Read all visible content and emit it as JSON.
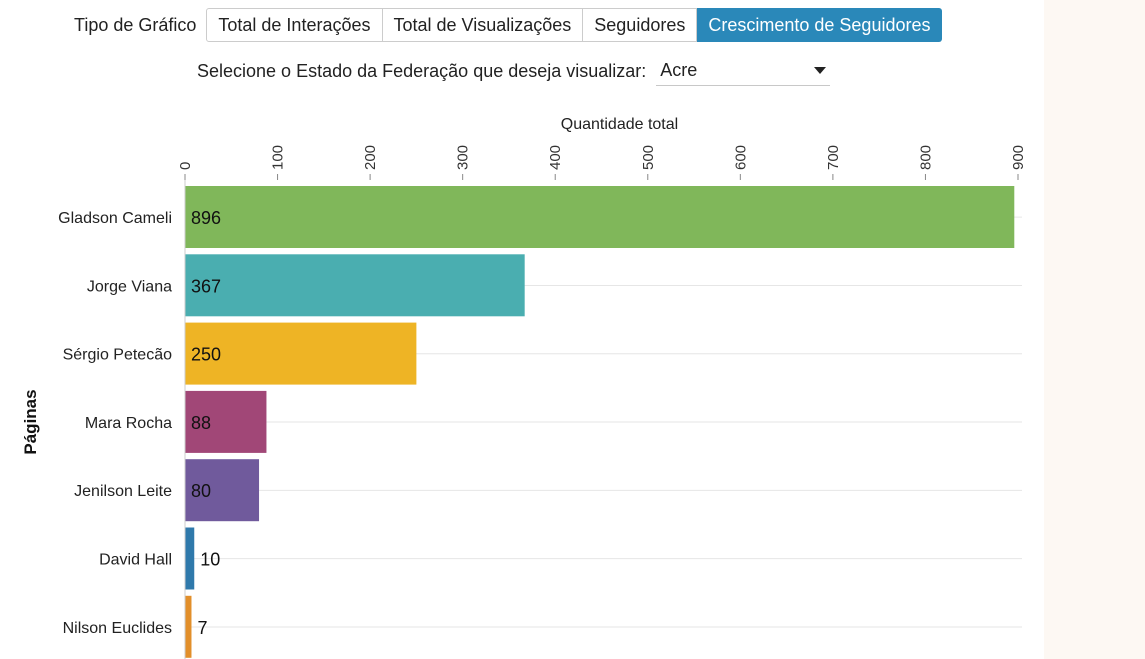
{
  "controls": {
    "label": "Tipo de Gráfico",
    "buttons": [
      {
        "label": "Total de Interações",
        "active": false
      },
      {
        "label": "Total de Visualizações",
        "active": false
      },
      {
        "label": "Seguidores",
        "active": false
      },
      {
        "label": "Crescimento de Seguidores",
        "active": true
      }
    ]
  },
  "state_selector": {
    "label": "Selecione o Estado da Federação que deseja visualizar:",
    "value": "Acre",
    "icon": "chevron-down-icon"
  },
  "chart_data": {
    "type": "bar",
    "orientation": "horizontal",
    "title": "Quantidade total",
    "xlabel": "Quantidade total",
    "ylabel": "Páginas",
    "xlim": [
      0,
      900
    ],
    "ticks": [
      0,
      100,
      200,
      300,
      400,
      500,
      600,
      700,
      800,
      900
    ],
    "categories": [
      "Gladson Cameli",
      "Jorge Viana",
      "Sérgio Petecão",
      "Mara Rocha",
      "Jenilson Leite",
      "David Hall",
      "Nilson Euclides"
    ],
    "values": [
      896,
      367,
      250,
      88,
      80,
      10,
      7
    ],
    "colors": [
      "#80b75a",
      "#4aaeb0",
      "#eeb425",
      "#a14777",
      "#705a9c",
      "#2f79ab",
      "#e28f2a"
    ],
    "grid": true,
    "axis_position": "top"
  },
  "colors": {
    "accent": "#2a88b9",
    "side_panel": "#fdf8f3"
  }
}
